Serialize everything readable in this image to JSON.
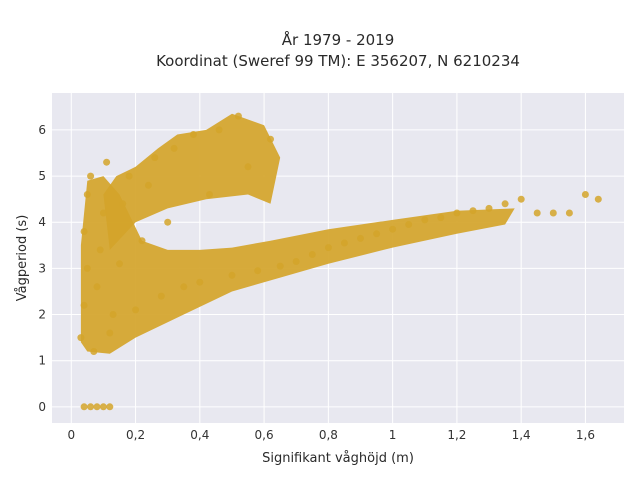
{
  "chart_data": {
    "type": "scatter",
    "title_lines": [
      "År 1979 - 2019",
      "Koordinat (Sweref 99 TM): E 356207, N 6210234"
    ],
    "xlabel": "Signifikant våghöjd (m)",
    "ylabel": "Vågperiod (s)",
    "xlim": [
      -0.06,
      1.72
    ],
    "ylim": [
      -0.35,
      6.8
    ],
    "x_ticks": [
      0,
      0.2,
      0.4,
      0.6,
      0.8,
      1,
      1.2,
      1.4,
      1.6
    ],
    "x_tick_labels": [
      "0",
      "0,2",
      "0,4",
      "0,6",
      "0,8",
      "1",
      "1,2",
      "1,4",
      "1,6"
    ],
    "y_ticks": [
      0,
      1,
      2,
      3,
      4,
      5,
      6
    ],
    "y_tick_labels": [
      "0",
      "1",
      "2",
      "3",
      "4",
      "5",
      "6"
    ],
    "grid": true,
    "background": "#e8e8f0",
    "grid_color": "#ffffff",
    "point_color": "#d4a42a",
    "series": [
      {
        "points": [
          [
            0.04,
            0
          ],
          [
            0.06,
            0
          ],
          [
            0.08,
            0
          ],
          [
            0.1,
            0
          ],
          [
            0.12,
            0
          ],
          [
            0.03,
            1.5
          ],
          [
            0.04,
            2.2
          ],
          [
            0.05,
            3.0
          ],
          [
            0.04,
            3.8
          ],
          [
            0.05,
            4.6
          ],
          [
            0.06,
            5.0
          ],
          [
            0.07,
            1.2
          ],
          [
            0.08,
            2.6
          ],
          [
            0.09,
            3.4
          ],
          [
            0.1,
            4.2
          ],
          [
            0.11,
            5.3
          ],
          [
            0.12,
            1.6
          ],
          [
            0.13,
            2.0
          ],
          [
            0.15,
            3.1
          ],
          [
            0.16,
            4.4
          ],
          [
            0.18,
            5.0
          ],
          [
            0.2,
            2.1
          ],
          [
            0.22,
            3.6
          ],
          [
            0.24,
            4.8
          ],
          [
            0.26,
            5.4
          ],
          [
            0.28,
            2.4
          ],
          [
            0.3,
            4.0
          ],
          [
            0.32,
            5.6
          ],
          [
            0.35,
            2.6
          ],
          [
            0.38,
            5.9
          ],
          [
            0.4,
            2.7
          ],
          [
            0.43,
            4.6
          ],
          [
            0.46,
            6.0
          ],
          [
            0.5,
            2.85
          ],
          [
            0.52,
            6.3
          ],
          [
            0.55,
            5.2
          ],
          [
            0.58,
            2.95
          ],
          [
            0.62,
            5.8
          ],
          [
            0.65,
            3.05
          ],
          [
            0.7,
            3.15
          ],
          [
            0.75,
            3.3
          ],
          [
            0.8,
            3.45
          ],
          [
            0.85,
            3.55
          ],
          [
            0.9,
            3.65
          ],
          [
            0.95,
            3.75
          ],
          [
            1.0,
            3.85
          ],
          [
            1.05,
            3.95
          ],
          [
            1.1,
            4.05
          ],
          [
            1.15,
            4.1
          ],
          [
            1.2,
            4.2
          ],
          [
            1.25,
            4.25
          ],
          [
            1.3,
            4.3
          ],
          [
            1.35,
            4.4
          ],
          [
            1.4,
            4.5
          ],
          [
            1.45,
            4.2
          ],
          [
            1.5,
            4.2
          ],
          [
            1.55,
            4.2
          ],
          [
            1.6,
            4.6
          ],
          [
            1.64,
            4.5
          ]
        ]
      }
    ]
  }
}
